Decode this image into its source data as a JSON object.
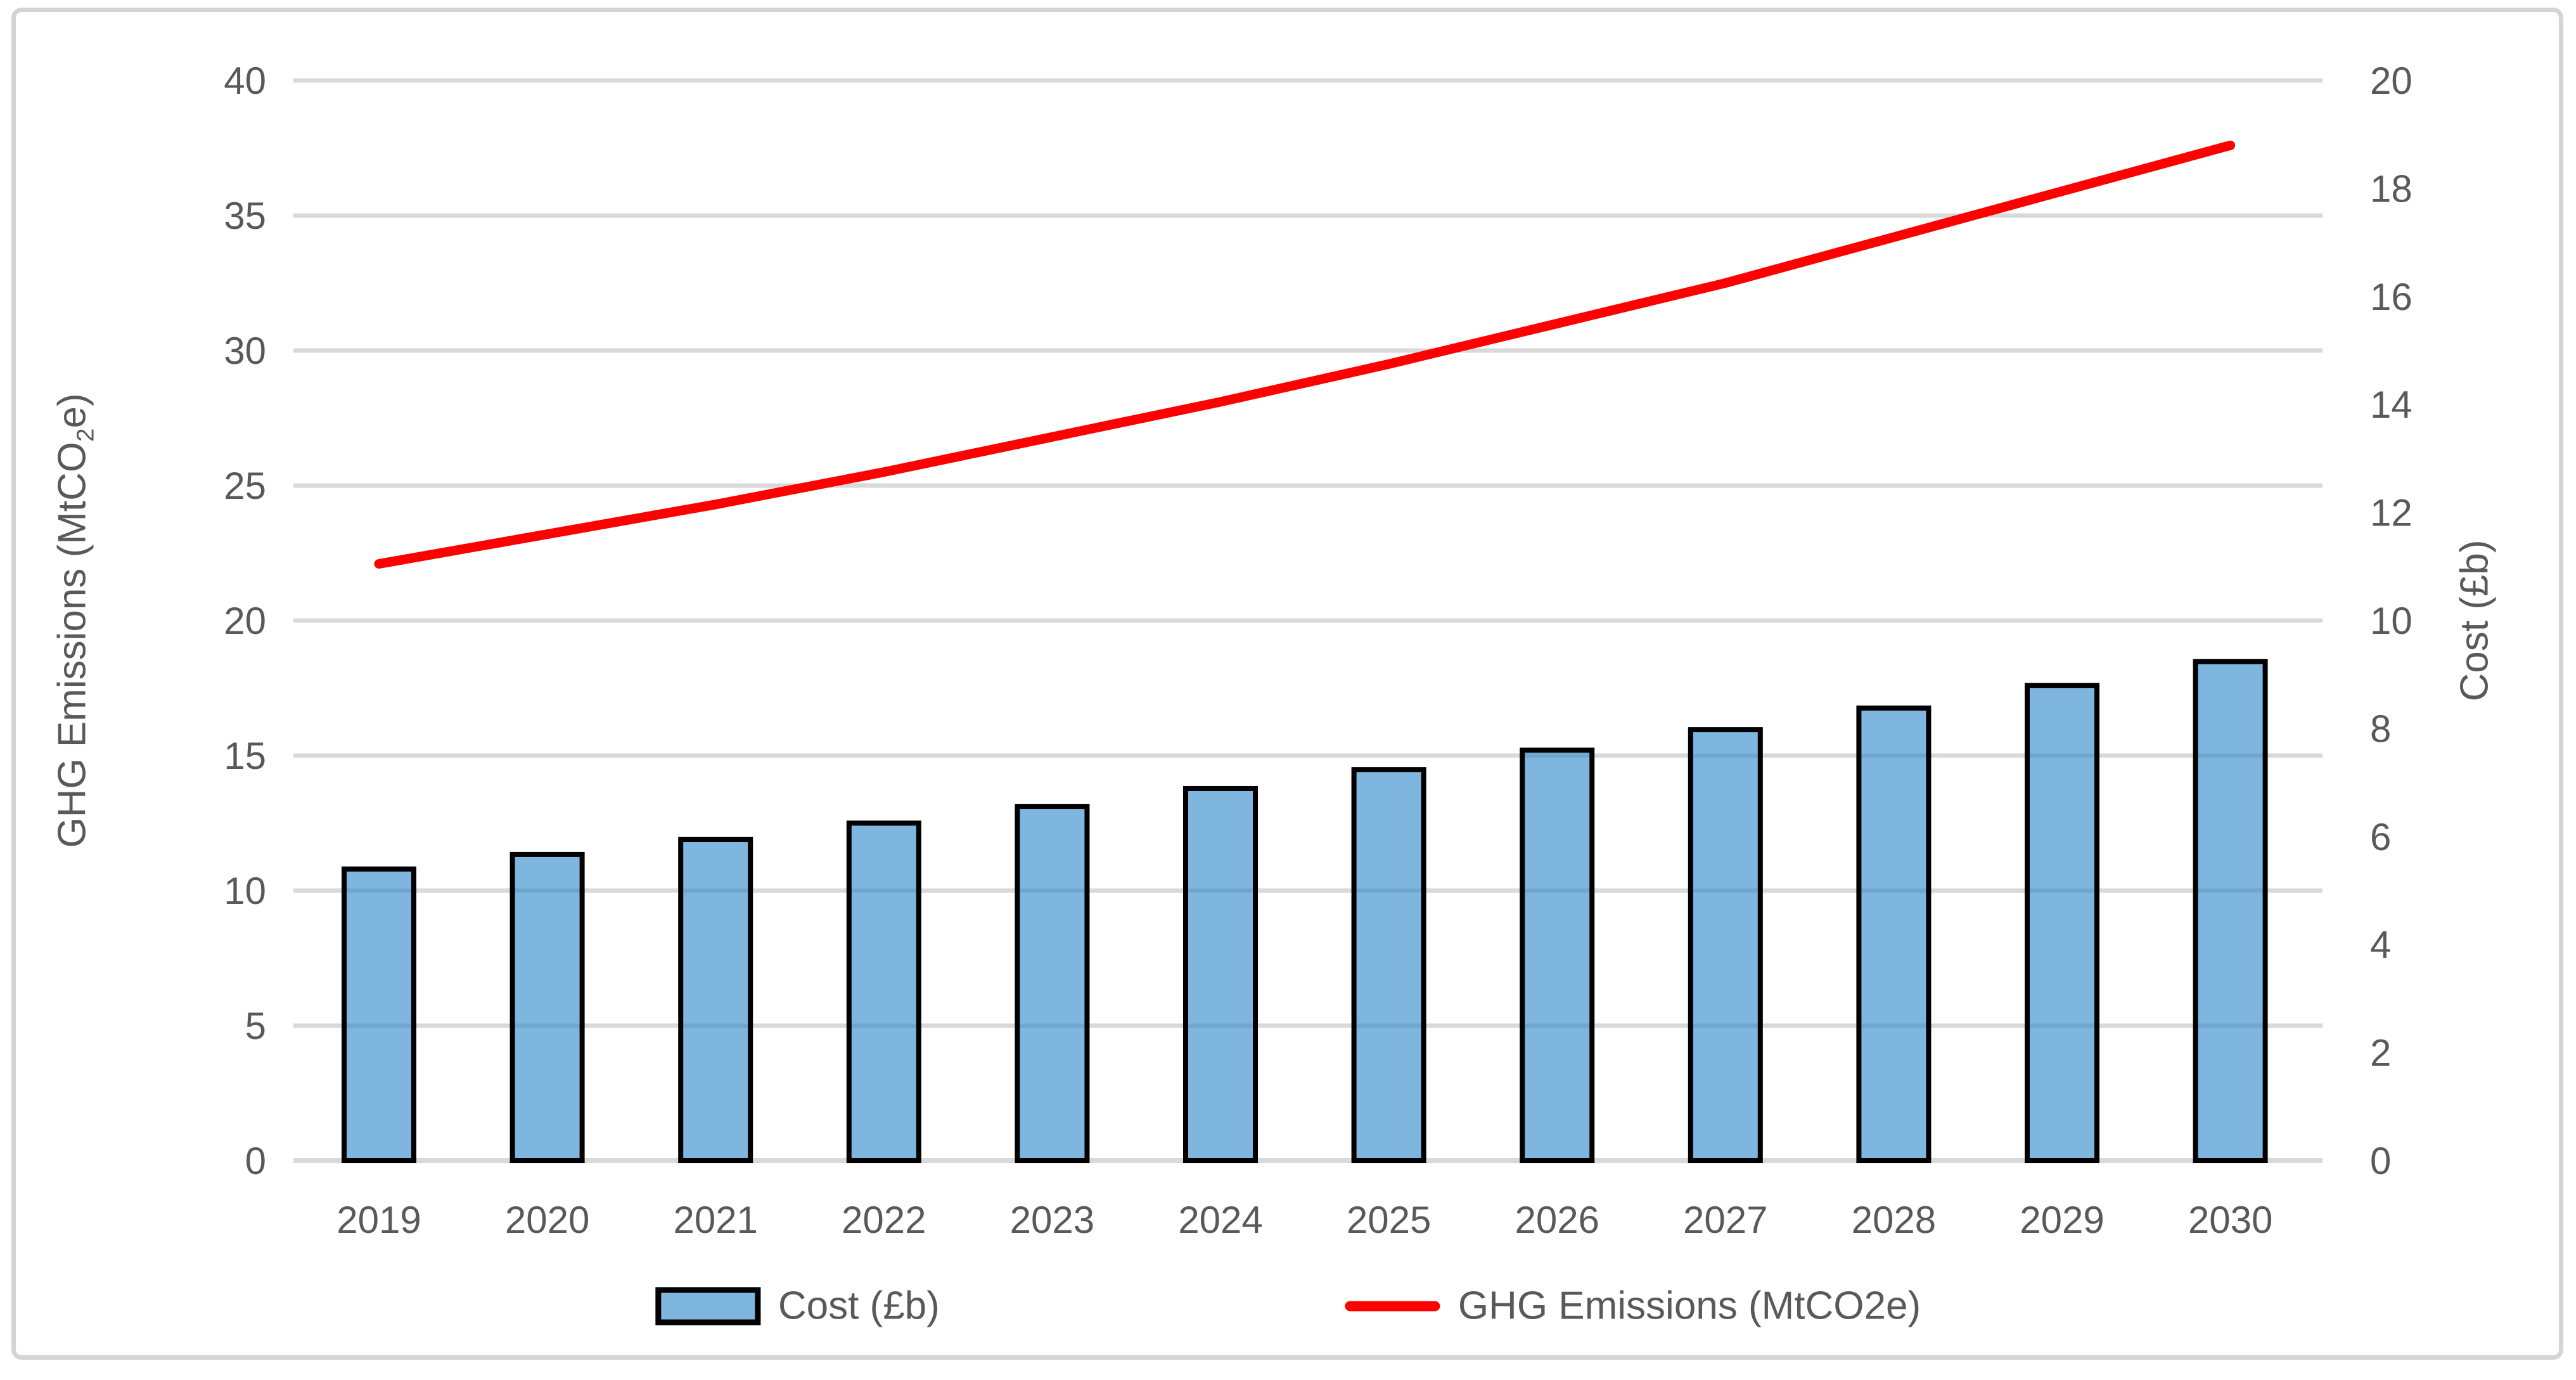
{
  "window": {
    "background": "#FFFFFF",
    "frame_border_color": "#D4D4D4"
  },
  "chart_data": {
    "type": "combo",
    "title": "",
    "categories": [
      "2019",
      "2020",
      "2021",
      "2022",
      "2023",
      "2024",
      "2025",
      "2026",
      "2027",
      "2028",
      "2029",
      "2030"
    ],
    "series": [
      {
        "name": "Cost (£b)",
        "type": "bar",
        "axis": "right",
        "values": [
          5.4,
          5.67,
          5.95,
          6.25,
          6.56,
          6.89,
          7.24,
          7.6,
          7.98,
          8.38,
          8.8,
          9.24
        ],
        "fill": "rgba(42,133,201,0.6)",
        "fill_apparent": "#7FB6DF",
        "border_color": "#000000"
      },
      {
        "name": "GHG Emissions (MtCO2e)",
        "type": "line",
        "axis": "left",
        "values": [
          22.1,
          23.2,
          24.3,
          25.5,
          26.8,
          28.1,
          29.5,
          31.0,
          32.5,
          34.2,
          35.9,
          37.6
        ],
        "color": "#FF0000"
      }
    ],
    "left_axis": {
      "title": "GHG Emissions (MtCO2e)",
      "title_pre": "GHG Emissions (MtCO",
      "title_sub": "2",
      "title_post": "e)",
      "min": 0,
      "max": 40,
      "step": 5,
      "ticks": [
        40,
        35,
        30,
        25,
        20,
        15,
        10,
        5,
        0
      ]
    },
    "right_axis": {
      "title": "Cost (£b)",
      "min": 0,
      "max": 20,
      "step": 2,
      "ticks": [
        20,
        18,
        16,
        14,
        12,
        10,
        8,
        6,
        4,
        2,
        0
      ]
    },
    "grid": true,
    "gridline_color": "#D9D9D9",
    "text_color": "#595959",
    "legend_position": "bottom"
  }
}
